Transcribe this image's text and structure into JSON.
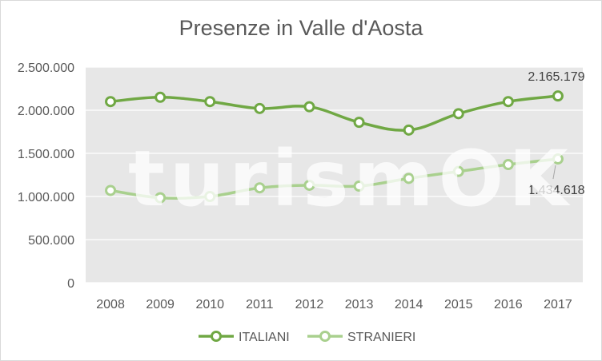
{
  "chart_data": {
    "type": "line",
    "title": "Presenze in Valle d'Aosta",
    "xlabel": "",
    "ylabel": "",
    "categories": [
      "2008",
      "2009",
      "2010",
      "2011",
      "2012",
      "2013",
      "2014",
      "2015",
      "2016",
      "2017"
    ],
    "ylim": [
      0,
      2500000
    ],
    "yticks": [
      0,
      500000,
      1000000,
      1500000,
      2000000,
      2500000
    ],
    "ytick_labels": [
      "0",
      "500.000",
      "1.000.000",
      "1.500.000",
      "2.000.000",
      "2.500.000"
    ],
    "grid": true,
    "legend_position": "bottom",
    "series": [
      {
        "name": "ITALIANI",
        "color": "#70a844",
        "values": [
          2100000,
          2150000,
          2100000,
          2020000,
          2040000,
          1860000,
          1770000,
          1960000,
          2100000,
          2165179
        ]
      },
      {
        "name": "STRANIERI",
        "color": "#a9d08e",
        "values": [
          1070000,
          985000,
          1000000,
          1100000,
          1130000,
          1120000,
          1210000,
          1290000,
          1370000,
          1434618
        ]
      }
    ],
    "annotations": [
      {
        "series": 0,
        "index": 9,
        "text": "2.165.179"
      },
      {
        "series": 1,
        "index": 9,
        "text": "1.434.618"
      }
    ],
    "watermark": "turismOK",
    "plot_background": "#e7e7e7",
    "gridline_color": "#ffffff"
  }
}
